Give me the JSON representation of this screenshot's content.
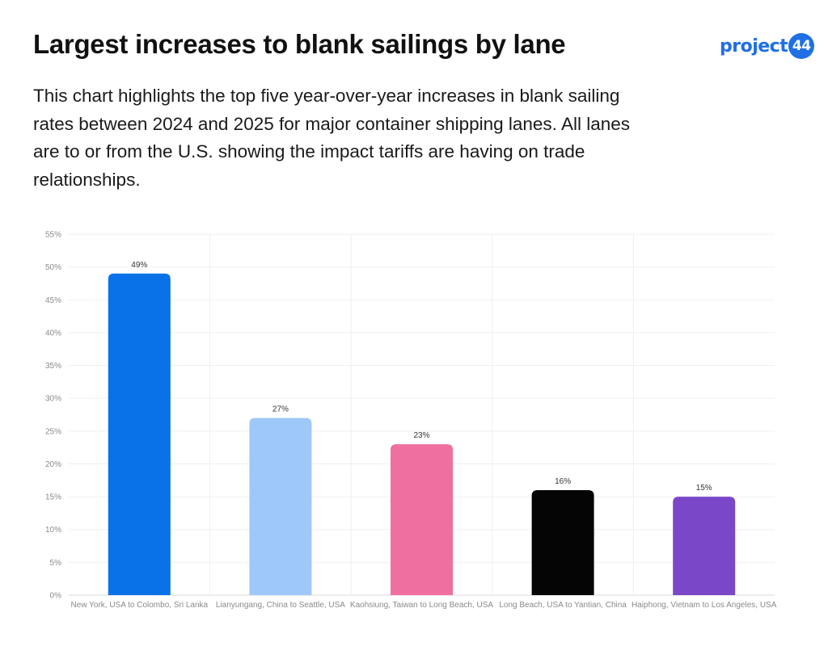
{
  "header": {
    "title": "Largest increases to blank sailings by lane",
    "description": "This chart highlights the top five year-over-year increases in blank sailing rates between 2024 and 2025 for major container shipping lanes. All lanes are to or from the U.S. showing the impact tariffs are having on trade relationships.",
    "logo_text": "project",
    "logo_badge": "44",
    "logo_color": "#1f6fe5"
  },
  "chart_data": {
    "type": "bar",
    "categories": [
      "New York, USA to Colombo, Sri Lanka",
      "Lianyungang, China to Seattle, USA",
      "Kaohsiung, Taiwan to Long Beach, USA",
      "Long Beach, USA to Yantian, China",
      "Haiphong, Vietnam to Los Angeles, USA"
    ],
    "values": [
      49,
      27,
      23,
      16,
      15
    ],
    "data_labels": [
      "49%",
      "27%",
      "23%",
      "16%",
      "15%"
    ],
    "colors": [
      "#0a72e8",
      "#9ec8f7",
      "#ef6fa0",
      "#050505",
      "#7b47c9"
    ],
    "ylim": [
      0,
      55
    ],
    "yticks": [
      0,
      5,
      10,
      15,
      20,
      25,
      30,
      35,
      40,
      45,
      50,
      55
    ],
    "ytick_labels": [
      "0%",
      "5%",
      "10%",
      "15%",
      "20%",
      "25%",
      "30%",
      "35%",
      "40%",
      "45%",
      "50%",
      "55%"
    ],
    "grid": true,
    "legend": "none"
  }
}
